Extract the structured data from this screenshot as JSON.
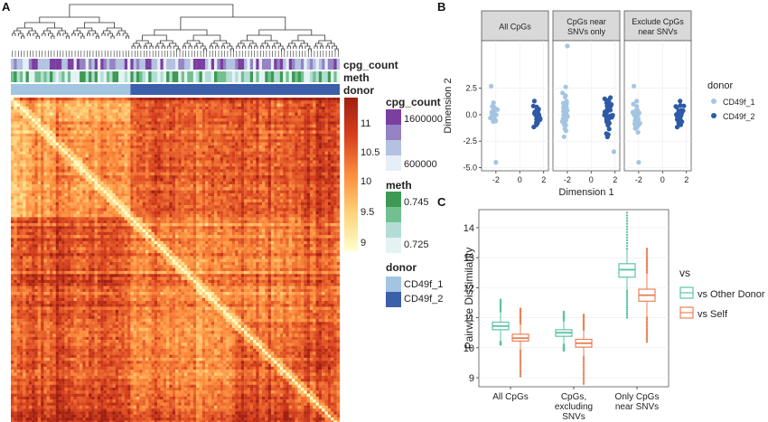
{
  "panels": {
    "a": "A",
    "b": "B",
    "c": "C"
  },
  "heatmap": {
    "annotation_rows": [
      "cpg_count",
      "meth",
      "donor"
    ],
    "n_samples": 110,
    "donor_split_index": 40,
    "legend": {
      "scale_ticks": [
        "11",
        "10.5",
        "10",
        "9.5",
        "9"
      ],
      "cpg_count": {
        "title": "cpg_count",
        "labels": [
          "1600000",
          "600000"
        ],
        "colors": [
          "#7b3fa0",
          "#9583c3",
          "#b3c2e0",
          "#e6eef7"
        ]
      },
      "meth": {
        "title": "meth",
        "labels": [
          "0.745",
          "0.725"
        ],
        "colors": [
          "#3e9a53",
          "#72c08f",
          "#b2ddd6",
          "#e4f2f4"
        ]
      },
      "donor": {
        "title": "donor",
        "labels": [
          "CD49f_1",
          "CD49f_2"
        ],
        "colors": [
          "#a4c5e2",
          "#3b5fa8"
        ]
      }
    },
    "colors": {
      "low": "#ffffcc",
      "mid": "#fd8d3c",
      "high": "#a01f10"
    }
  },
  "panel_b": {
    "facets": [
      "All CpGs",
      "CpGs near\nSNVs only",
      "Exclude CpGs\nnear SNVs"
    ],
    "xlabel": "Dimension 1",
    "ylabel": "Dimension 2",
    "xticks": [
      "-2",
      "0",
      "2"
    ],
    "yticks": [
      "2.5",
      "0.0",
      "-2.5",
      "-5.0"
    ],
    "legend_title": "donor",
    "legend_entries": [
      {
        "name": "CD49f_1",
        "color": "#a4c5e2"
      },
      {
        "name": "CD49f_2",
        "color": "#2d5aa6"
      }
    ]
  },
  "chart_data": {
    "type": "box",
    "title": "",
    "categories": [
      "All CpGs",
      "CpGs,\nexcluding\nSNVs",
      "Only CpGs\nnear SNVs"
    ],
    "ylabel": "Pairwise Dissimilarity",
    "xlabel": "",
    "ylim": [
      8.7,
      14.6
    ],
    "yticks": [
      "9",
      "10",
      "11",
      "12",
      "13",
      "14"
    ],
    "legend_title": "vs",
    "series": [
      {
        "name": "vs Other Donor",
        "color": "#5ec4a0",
        "boxes": [
          {
            "min": 10.2,
            "q1": 10.6,
            "median": 10.72,
            "q3": 10.85,
            "max": 11.2,
            "out_low": 10.1,
            "out_high": 11.6
          },
          {
            "min": 10.1,
            "q1": 10.38,
            "median": 10.5,
            "q3": 10.6,
            "max": 10.9,
            "out_low": 9.9,
            "out_high": 11.2
          },
          {
            "min": 11.9,
            "q1": 12.35,
            "median": 12.6,
            "q3": 12.8,
            "max": 13.3,
            "out_low": 11.0,
            "out_high": 14.5
          }
        ]
      },
      {
        "name": "vs Self",
        "color": "#e8825a",
        "boxes": [
          {
            "min": 9.9,
            "q1": 10.22,
            "median": 10.32,
            "q3": 10.45,
            "max": 10.8,
            "out_low": 9.05,
            "out_high": 11.3
          },
          {
            "min": 9.7,
            "q1": 10.02,
            "median": 10.15,
            "q3": 10.28,
            "max": 10.6,
            "out_low": 8.8,
            "out_high": 11.1
          },
          {
            "min": 11.0,
            "q1": 11.55,
            "median": 11.75,
            "q3": 11.95,
            "max": 12.5,
            "out_low": 10.2,
            "out_high": 13.3
          }
        ]
      }
    ]
  }
}
